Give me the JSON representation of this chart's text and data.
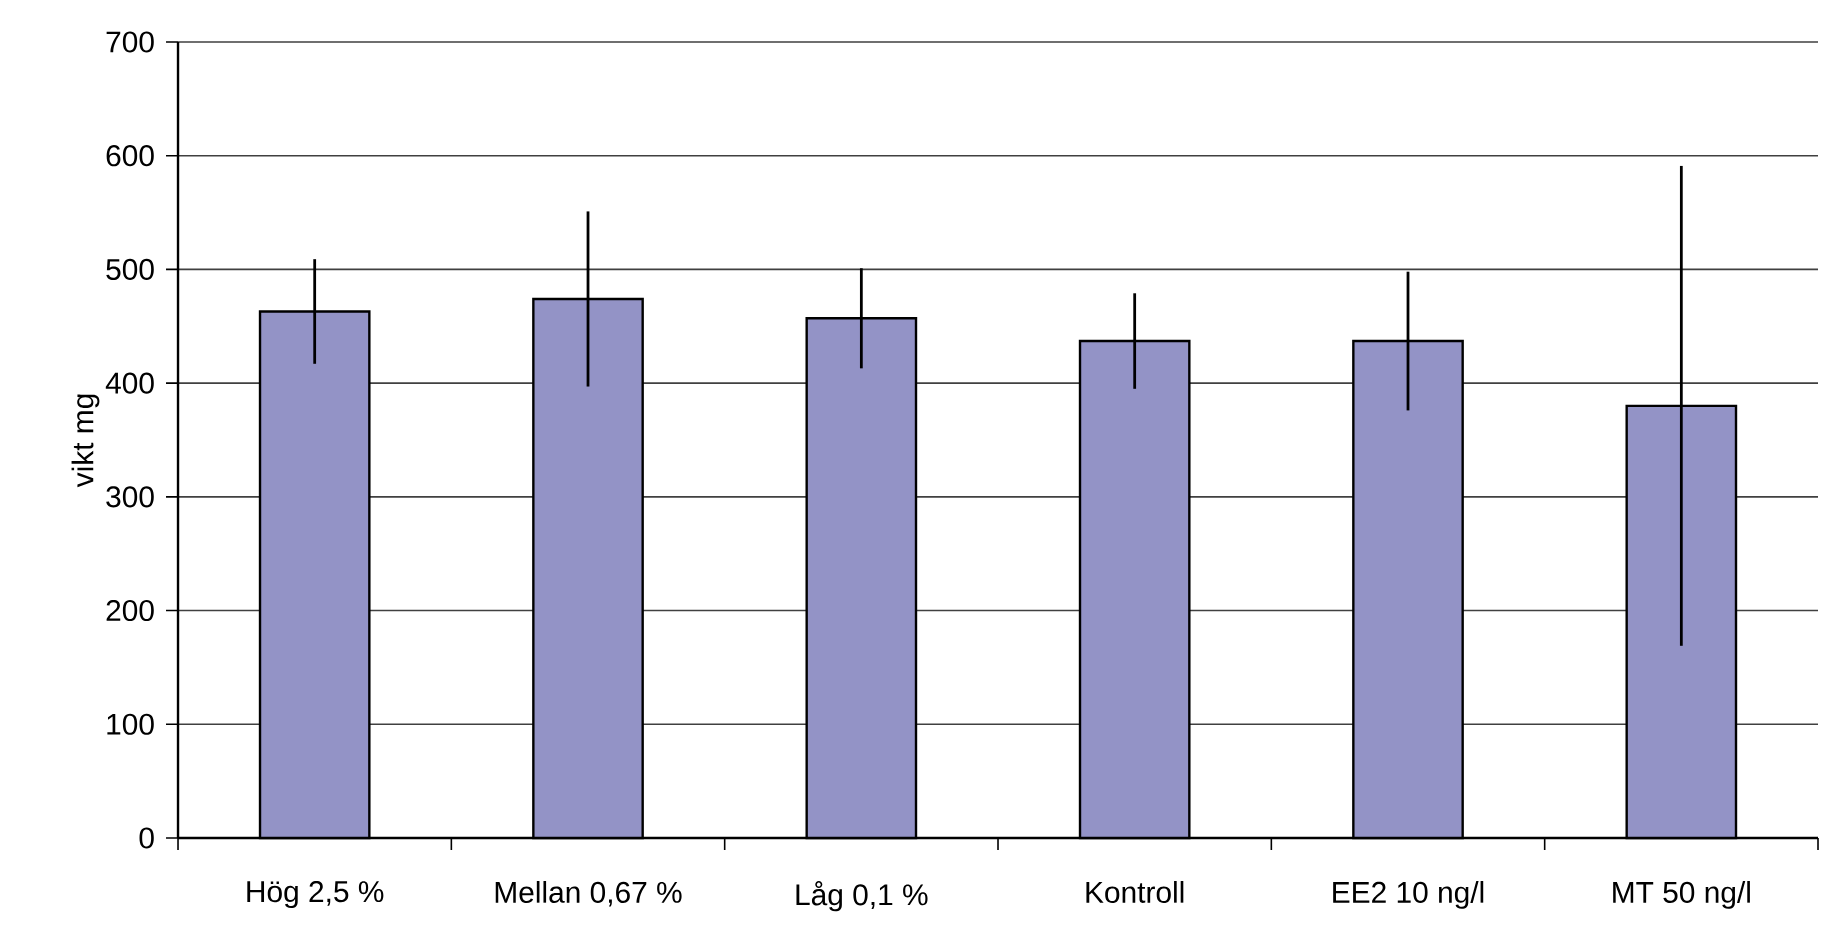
{
  "chart_data": {
    "type": "bar",
    "ylabel": "vikt mg",
    "categories": [
      "Hög 2,5 %",
      "Mellan 0,67 %",
      "Låg 0,1 %",
      "Kontroll",
      "EE2 10 ng/l",
      "MT 50 ng/l"
    ],
    "values": [
      463,
      474,
      457,
      437,
      437,
      380
    ],
    "errors": [
      46,
      77,
      44,
      42,
      61,
      211
    ],
    "color": "#9393c6",
    "ylim": [
      0,
      700
    ],
    "yticks": [
      0,
      100,
      200,
      300,
      400,
      500,
      600,
      700
    ],
    "grid": "y"
  }
}
